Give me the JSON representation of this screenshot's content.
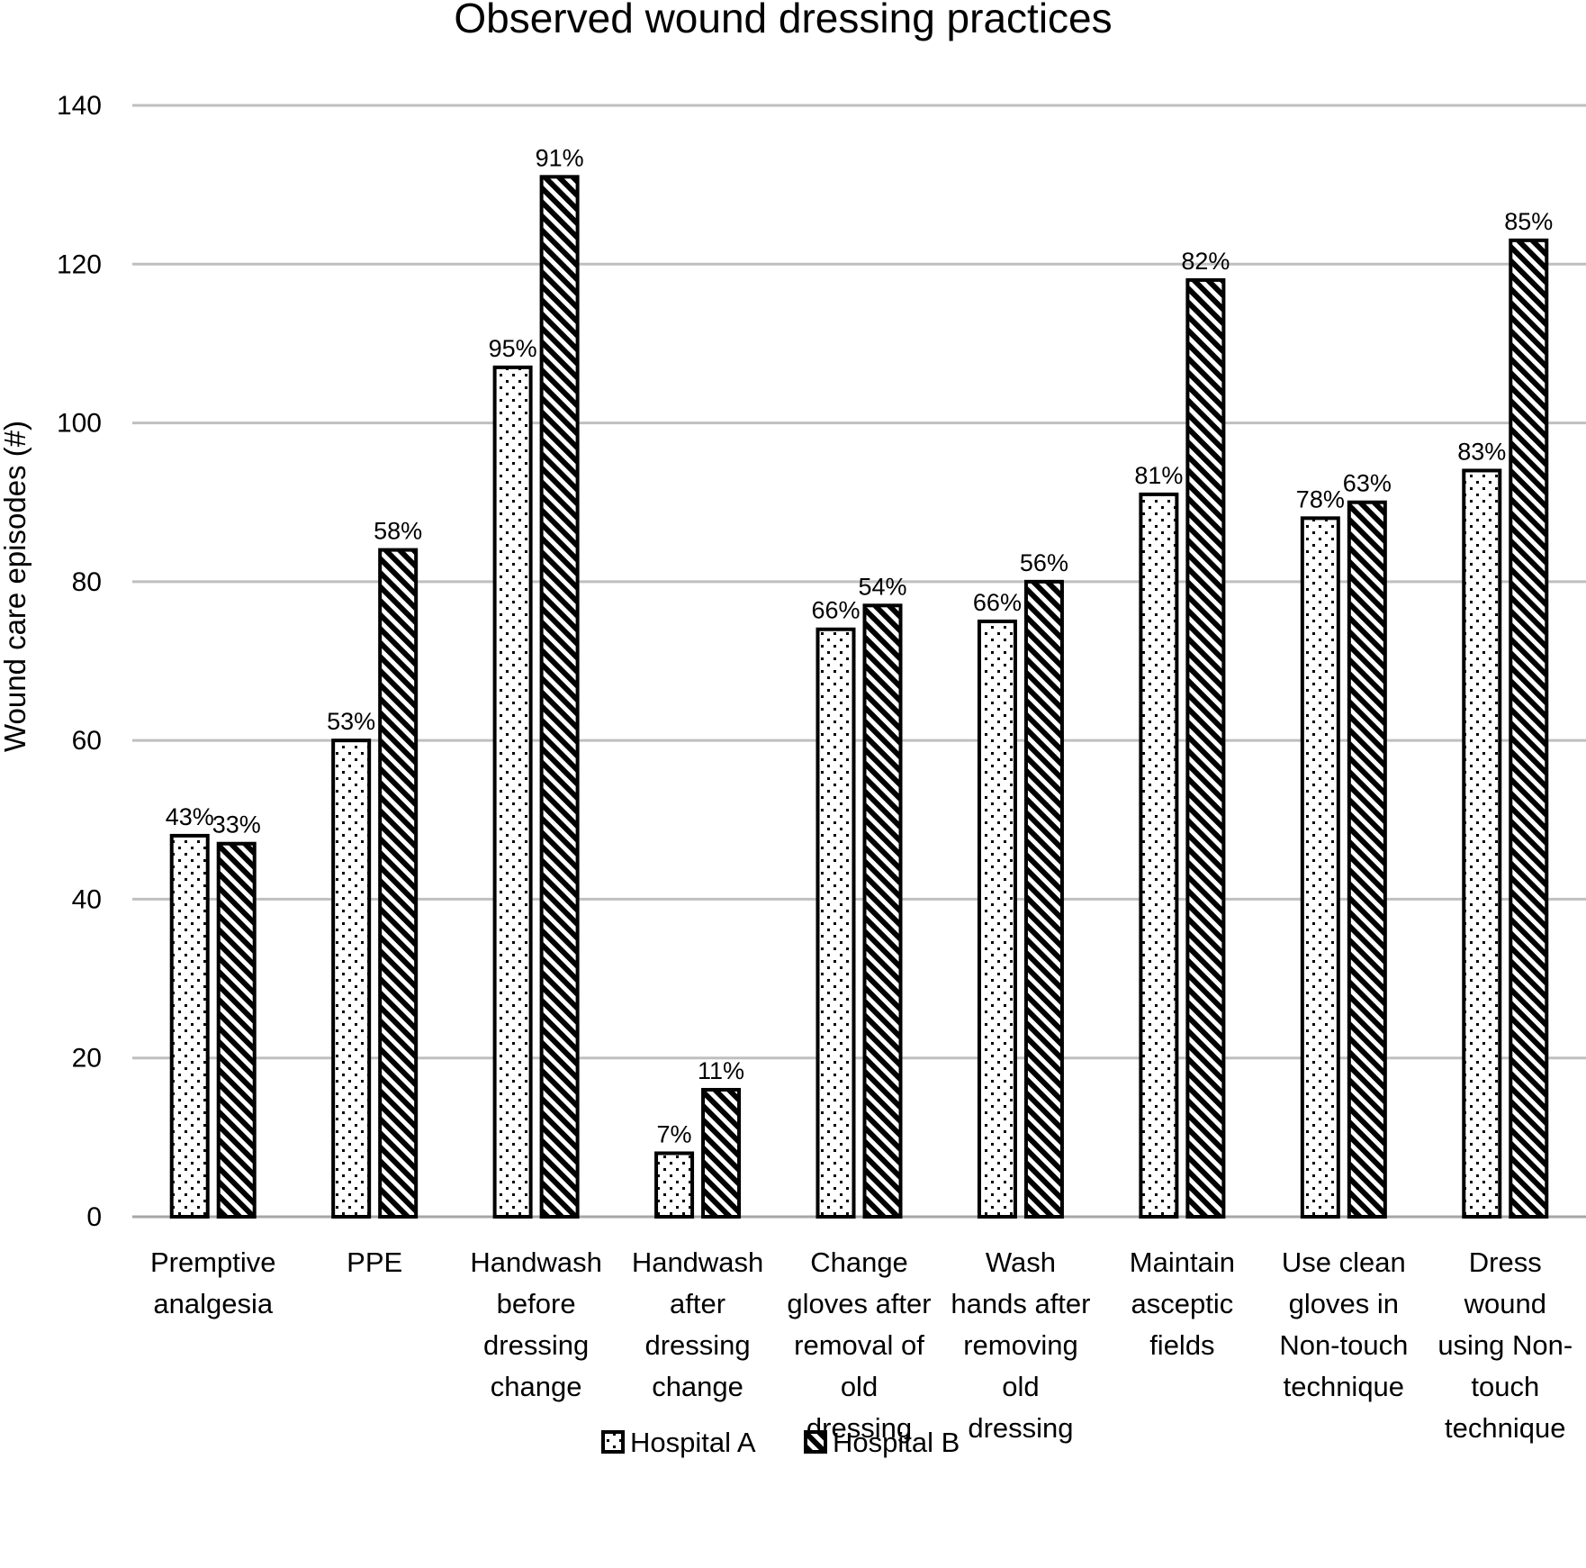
{
  "chart_data": {
    "type": "bar",
    "title": "Observed  wound  dressing practices",
    "ylabel": "Wound care episodes (#)",
    "xlabel": "",
    "ylim": [
      0,
      140
    ],
    "yticks": [
      0,
      20,
      40,
      60,
      80,
      100,
      120,
      140
    ],
    "grid": true,
    "legend_position": "bottom",
    "categories": [
      [
        "Premptive",
        "analgesia"
      ],
      [
        "PPE"
      ],
      [
        "Handwash",
        "before",
        "dressing",
        "change"
      ],
      [
        "Handwash",
        "after",
        "dressing",
        "change"
      ],
      [
        "Change",
        "gloves after",
        "removal of",
        "old",
        "dressing"
      ],
      [
        "Wash",
        "hands after",
        "removing",
        "old",
        "dressing"
      ],
      [
        "Maintain",
        "asceptic",
        "fields"
      ],
      [
        "Use clean",
        "gloves in",
        "Non-touch",
        "technique"
      ],
      [
        "Dress",
        "wound",
        "using Non-",
        "touch",
        "technique"
      ]
    ],
    "series": [
      {
        "name": "Hospital A",
        "pattern": "dots",
        "values": [
          48,
          60,
          107,
          8,
          74,
          75,
          91,
          88,
          94
        ],
        "labels": [
          "43%",
          "53%",
          "95%",
          "7%",
          "66%",
          "66%",
          "81%",
          "78%",
          "83%"
        ]
      },
      {
        "name": "Hospital B",
        "pattern": "diagonal-stripes",
        "values": [
          47,
          84,
          131,
          16,
          77,
          80,
          118,
          90,
          123
        ],
        "labels": [
          "33%",
          "58%",
          "91%",
          "11%",
          "54%",
          "56%",
          "82%",
          "63%",
          "85%"
        ]
      }
    ],
    "colors": {
      "bar_outline": "#000000",
      "bar_fill": "#ffffff",
      "grid": "#bfbfbf"
    }
  }
}
